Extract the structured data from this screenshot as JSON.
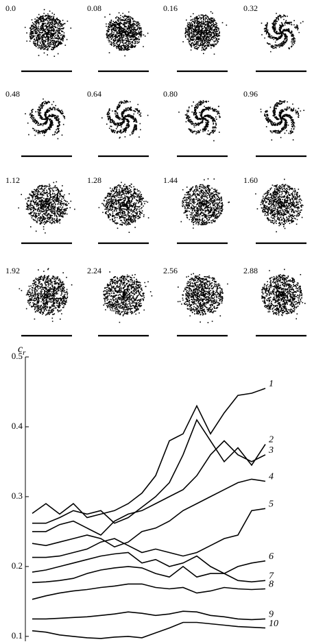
{
  "panels": [
    "0.0",
    "0.08",
    "0.16",
    "0.32",
    "0.48",
    "0.64",
    "0.80",
    "0.96",
    "1.12",
    "1.28",
    "1.44",
    "1.60",
    "1.92",
    "2.24",
    "2.56",
    "2.88"
  ],
  "chart_data": {
    "type": "line",
    "y_label": {
      "symbol": "c",
      "subscript": "r"
    },
    "ylim": [
      0.093,
      0.5
    ],
    "yticks": [
      0.1,
      0.2,
      0.3,
      0.4,
      0.5
    ],
    "color": "#000000",
    "series": [
      {
        "name": "1",
        "values": [
          0.276,
          0.29,
          0.275,
          0.29,
          0.27,
          0.275,
          0.28,
          0.29,
          0.305,
          0.33,
          0.38,
          0.39,
          0.43,
          0.39,
          0.42,
          0.445,
          0.448,
          0.455
        ]
      },
      {
        "name": "2",
        "values": [
          0.262,
          0.262,
          0.27,
          0.28,
          0.275,
          0.28,
          0.262,
          0.27,
          0.285,
          0.3,
          0.32,
          0.36,
          0.41,
          0.38,
          0.35,
          0.37,
          0.345,
          0.375
        ]
      },
      {
        "name": "3",
        "values": [
          0.25,
          0.25,
          0.26,
          0.265,
          0.255,
          0.245,
          0.265,
          0.275,
          0.28,
          0.29,
          0.3,
          0.31,
          0.33,
          0.36,
          0.38,
          0.36,
          0.35,
          0.36
        ]
      },
      {
        "name": "4",
        "values": [
          0.233,
          0.23,
          0.235,
          0.24,
          0.245,
          0.24,
          0.228,
          0.235,
          0.25,
          0.255,
          0.265,
          0.28,
          0.29,
          0.3,
          0.31,
          0.32,
          0.325,
          0.322
        ]
      },
      {
        "name": "5",
        "values": [
          0.213,
          0.213,
          0.215,
          0.22,
          0.225,
          0.235,
          0.24,
          0.23,
          0.22,
          0.225,
          0.22,
          0.215,
          0.22,
          0.23,
          0.24,
          0.245,
          0.28,
          0.283
        ]
      },
      {
        "name": "6",
        "values": [
          0.192,
          0.195,
          0.2,
          0.205,
          0.21,
          0.215,
          0.218,
          0.22,
          0.205,
          0.21,
          0.2,
          0.205,
          0.215,
          0.2,
          0.19,
          0.2,
          0.205,
          0.208
        ]
      },
      {
        "name": "7",
        "values": [
          0.177,
          0.178,
          0.18,
          0.183,
          0.19,
          0.195,
          0.198,
          0.2,
          0.198,
          0.19,
          0.185,
          0.2,
          0.185,
          0.19,
          0.19,
          0.18,
          0.178,
          0.18
        ]
      },
      {
        "name": "8",
        "values": [
          0.153,
          0.158,
          0.162,
          0.165,
          0.167,
          0.17,
          0.172,
          0.175,
          0.175,
          0.17,
          0.168,
          0.17,
          0.162,
          0.165,
          0.17,
          0.168,
          0.167,
          0.168
        ]
      },
      {
        "name": "9",
        "values": [
          0.125,
          0.125,
          0.126,
          0.127,
          0.128,
          0.13,
          0.132,
          0.135,
          0.133,
          0.13,
          0.132,
          0.136,
          0.135,
          0.13,
          0.128,
          0.125,
          0.124,
          0.125
        ]
      },
      {
        "name": "10",
        "values": [
          0.108,
          0.106,
          0.102,
          0.1,
          0.098,
          0.097,
          0.099,
          0.1,
          0.098,
          0.105,
          0.112,
          0.12,
          0.12,
          0.118,
          0.116,
          0.114,
          0.113,
          0.112
        ]
      }
    ]
  }
}
